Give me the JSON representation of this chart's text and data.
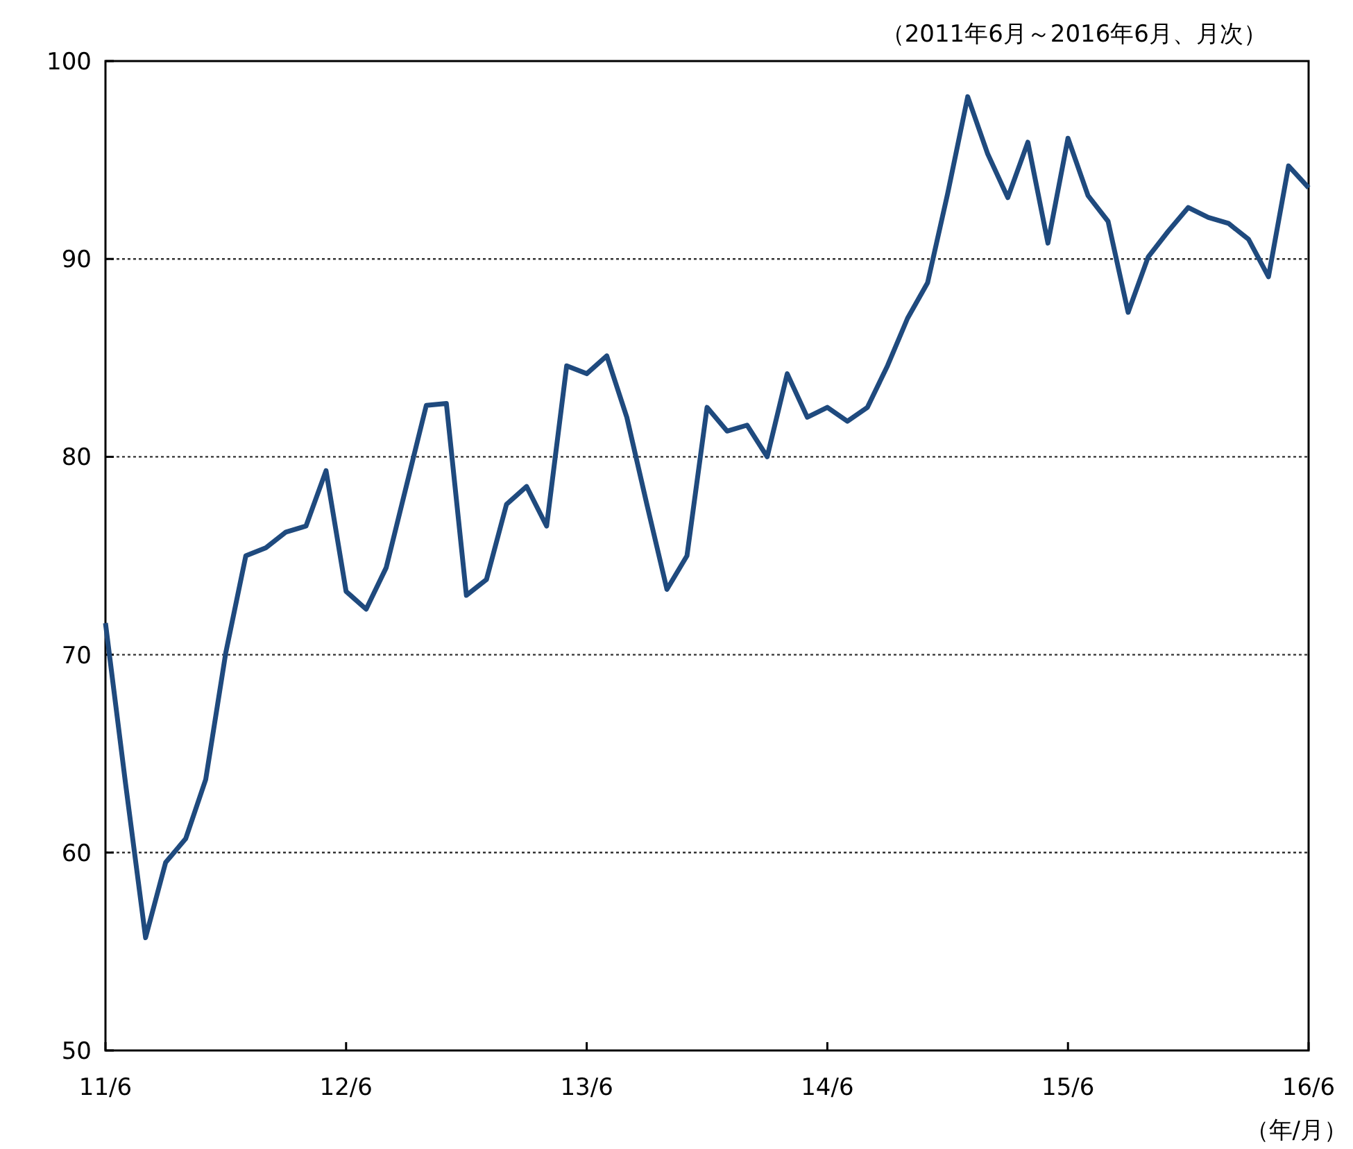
{
  "chart_data": {
    "type": "line",
    "subtitle": "（2011年6月～2016年6月、月次）",
    "xlabel": "（年/月）",
    "x": [
      "2011-06",
      "2011-07",
      "2011-08",
      "2011-09",
      "2011-10",
      "2011-11",
      "2011-12",
      "2012-01",
      "2012-02",
      "2012-03",
      "2012-04",
      "2012-05",
      "2012-06",
      "2012-07",
      "2012-08",
      "2012-09",
      "2012-10",
      "2012-11",
      "2012-12",
      "2013-01",
      "2013-02",
      "2013-03",
      "2013-04",
      "2013-05",
      "2013-06",
      "2013-07",
      "2013-08",
      "2013-09",
      "2013-10",
      "2013-11",
      "2013-12",
      "2014-01",
      "2014-02",
      "2014-03",
      "2014-04",
      "2014-05",
      "2014-06",
      "2014-07",
      "2014-08",
      "2014-09",
      "2014-10",
      "2014-11",
      "2014-12",
      "2015-01",
      "2015-02",
      "2015-03",
      "2015-04",
      "2015-05",
      "2015-06",
      "2015-07",
      "2015-08",
      "2015-09",
      "2015-10",
      "2015-11",
      "2015-12",
      "2016-01",
      "2016-02",
      "2016-03",
      "2016-04",
      "2016-05",
      "2016-06"
    ],
    "series": [
      {
        "color": "#1f4a7e",
        "values": [
          71.6,
          63.5,
          55.7,
          59.5,
          60.7,
          63.7,
          70.1,
          75.0,
          75.4,
          76.2,
          76.5,
          79.3,
          73.2,
          72.3,
          74.4,
          78.5,
          82.6,
          82.7,
          73.0,
          73.8,
          77.6,
          78.5,
          76.5,
          84.6,
          84.2,
          85.1,
          82.0,
          77.6,
          73.3,
          75.0,
          82.5,
          81.3,
          81.6,
          80.0,
          84.2,
          82.0,
          82.5,
          81.8,
          82.5,
          84.6,
          87.0,
          88.8,
          93.3,
          98.2,
          95.3,
          93.1,
          95.9,
          90.8,
          96.1,
          93.2,
          91.9,
          87.3,
          90.1,
          91.4,
          92.6,
          92.1,
          91.8,
          91.0,
          89.1,
          94.7,
          93.6
        ]
      }
    ],
    "xlim": [
      "2011-06",
      "2016-06"
    ],
    "xticks": [
      {
        "value": "2011-06",
        "label": "11/6"
      },
      {
        "value": "2012-06",
        "label": "12/6"
      },
      {
        "value": "2013-06",
        "label": "13/6"
      },
      {
        "value": "2014-06",
        "label": "14/6"
      },
      {
        "value": "2015-06",
        "label": "15/6"
      },
      {
        "value": "2016-06",
        "label": "16/6"
      }
    ],
    "ylim": [
      50,
      100
    ],
    "yticks": [
      50,
      60,
      70,
      80,
      90,
      100
    ],
    "grid": "y",
    "line_style": "solid",
    "marker": "none"
  }
}
